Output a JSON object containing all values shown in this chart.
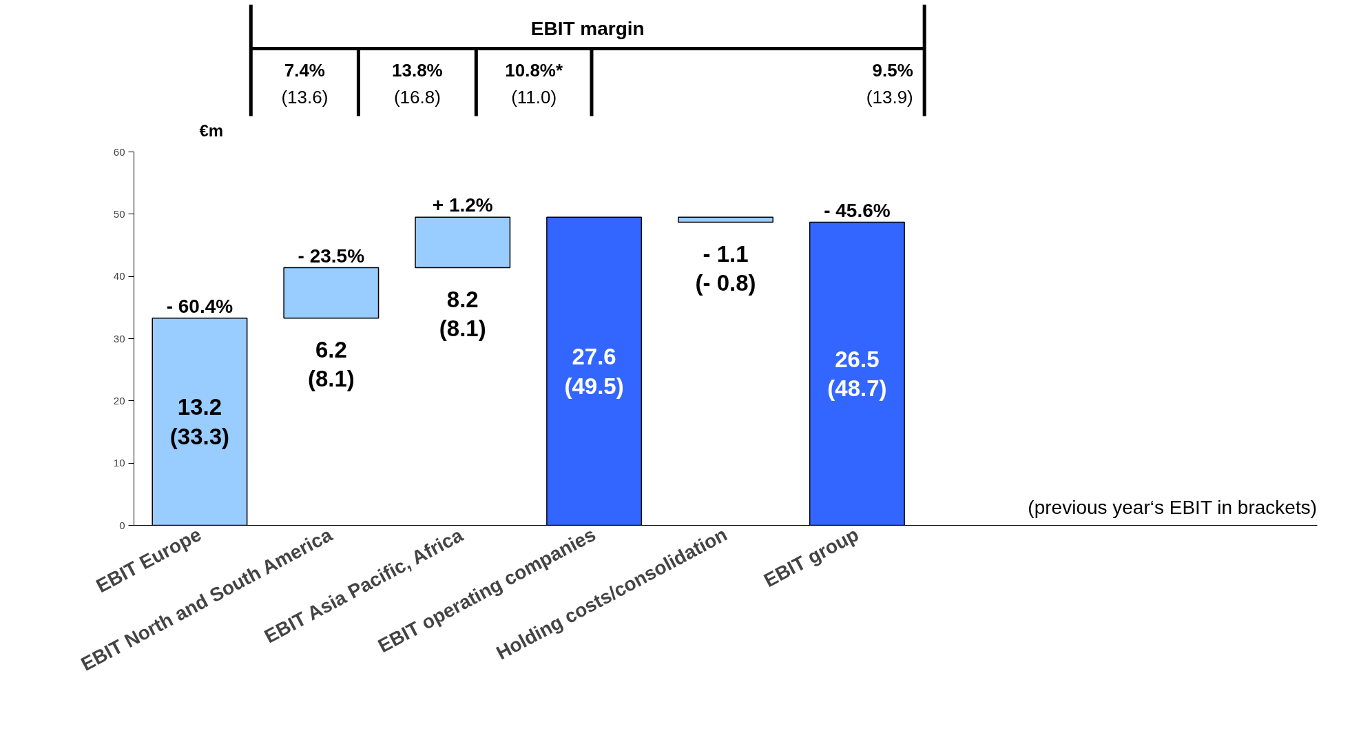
{
  "chart_data": {
    "type": "bar",
    "ylabel": "€m",
    "categories": [
      "EBIT Europe",
      "EBIT North and South America",
      "EBIT Asia Pacific, Africa",
      "EBIT operating companies",
      "Holding costs/consolidation",
      "EBIT group"
    ],
    "values": [
      33.3,
      8.1,
      8.1,
      49.5,
      -0.8,
      48.7
    ],
    "base": [
      0,
      33.3,
      41.4,
      0,
      49.5,
      0
    ],
    "colors": [
      "#99ccff",
      "#99ccff",
      "#99ccff",
      "#3366ff",
      "#99ccff",
      "#3366ff"
    ],
    "value_labels": [
      "13.2\n(33.3)",
      "6.2\n(8.1)",
      "8.2\n(8.1)",
      "27.6\n(49.5)",
      "- 1.1\n(- 0.8)",
      "26.5\n(48.7)"
    ],
    "ylim": [
      0,
      60
    ],
    "yticks": [
      0,
      10,
      20,
      30,
      40,
      50,
      60
    ],
    "grid": false,
    "annotations": [
      "EBIT margin",
      "7.4%\n(13.6)",
      "13.8%\n(16.8)",
      "10.8%*\n(11.0)",
      "9.5%\n(13.9)",
      "(previous year‘s EBIT in brackets)",
      {
        "text": "- 60.4%",
        "x": "EBIT Europe",
        "y": 33.3
      },
      {
        "text": "- 23.5%",
        "x": "EBIT North and South America",
        "y": 41.4
      },
      {
        "text": "+ 1.2%",
        "x": "EBIT Asia Pacific, Africa",
        "y": 49.5
      },
      {
        "text": "- 45.6%",
        "x": "EBIT group",
        "y": 48.7
      }
    ]
  }
}
